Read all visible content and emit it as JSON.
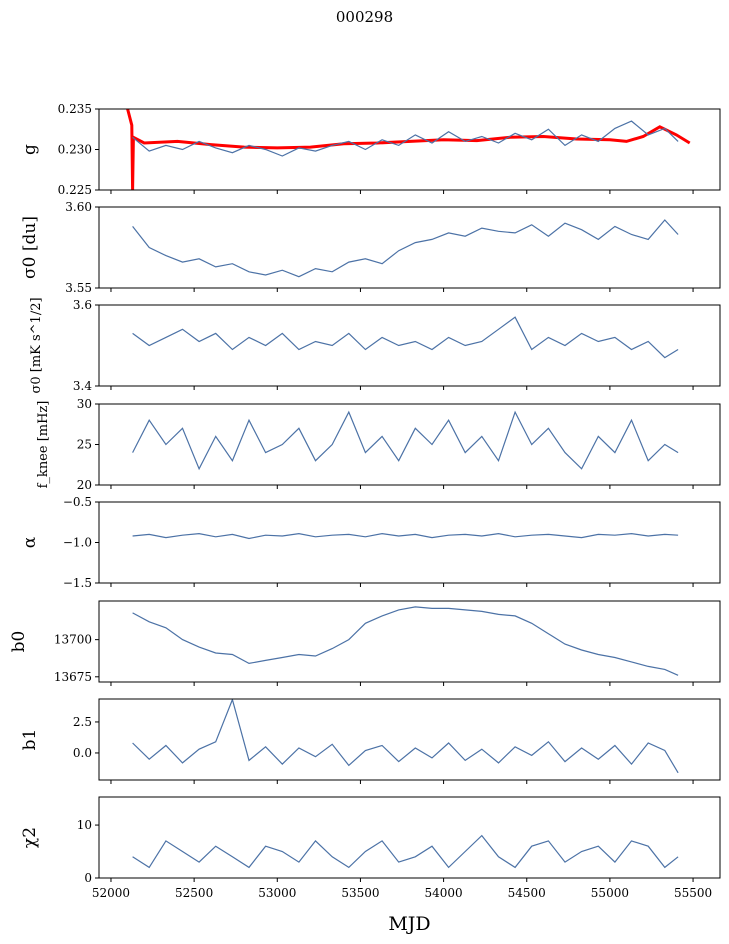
{
  "chart_data": {
    "type": "line",
    "title": "000298",
    "xlabel": "MJD",
    "xlim": [
      51928,
      55662
    ],
    "xticks": [
      52000,
      52500,
      53000,
      53500,
      54000,
      54500,
      55000,
      55500
    ],
    "xtick_labels": [
      "52000",
      "52500",
      "53000",
      "53500",
      "54000",
      "54500",
      "55000",
      "55500"
    ],
    "x": [
      52130,
      52230,
      52330,
      52430,
      52530,
      52630,
      52730,
      52830,
      52930,
      53030,
      53130,
      53230,
      53330,
      53430,
      53530,
      53630,
      53730,
      53830,
      53930,
      54030,
      54130,
      54230,
      54330,
      54430,
      54530,
      54630,
      54730,
      54830,
      54930,
      55030,
      55130,
      55230,
      55330,
      55410
    ],
    "panels": [
      {
        "ylabel": "g",
        "ylim": [
          0.225,
          0.235
        ],
        "yticks": [
          0.225,
          0.23,
          0.235
        ],
        "ytick_labels": [
          "0.225",
          "0.230",
          "0.235"
        ],
        "series": [
          {
            "name": "g-fit",
            "color": "#ff0000",
            "x": [
              52100,
              52125,
              52130,
              52135,
              52200,
              52400,
              52600,
              52800,
              53000,
              53200,
              53400,
              53600,
              53800,
              54000,
              54200,
              54400,
              54600,
              54800,
              55000,
              55100,
              55200,
              55300,
              55400,
              55480
            ],
            "values": [
              0.235,
              0.233,
              0.225,
              0.2315,
              0.2308,
              0.231,
              0.2306,
              0.2303,
              0.2302,
              0.2303,
              0.2307,
              0.2308,
              0.231,
              0.2312,
              0.2311,
              0.2315,
              0.2316,
              0.2313,
              0.2312,
              0.231,
              0.2316,
              0.2328,
              0.2318,
              0.2308
            ]
          },
          {
            "name": "g",
            "color": "#4c72a6",
            "values": [
              0.2315,
              0.2298,
              0.2305,
              0.23,
              0.231,
              0.2302,
              0.2296,
              0.2305,
              0.23,
              0.2292,
              0.2302,
              0.2298,
              0.2305,
              0.231,
              0.23,
              0.2312,
              0.2305,
              0.2318,
              0.2308,
              0.2322,
              0.231,
              0.2316,
              0.2308,
              0.232,
              0.2312,
              0.2325,
              0.2305,
              0.2318,
              0.231,
              0.2326,
              0.2335,
              0.2318,
              0.2326,
              0.231
            ]
          }
        ]
      },
      {
        "ylabel": "σ0 [du]",
        "ylim": [
          3.55,
          3.6
        ],
        "yticks": [
          3.55,
          3.6
        ],
        "ytick_labels": [
          "3.55",
          "3.60"
        ],
        "series": [
          {
            "name": "sigma0-du",
            "color": "#4c72a6",
            "values": [
              3.588,
              3.575,
              3.57,
              3.566,
              3.568,
              3.563,
              3.565,
              3.56,
              3.558,
              3.561,
              3.557,
              3.562,
              3.56,
              3.566,
              3.568,
              3.565,
              3.573,
              3.578,
              3.58,
              3.584,
              3.582,
              3.587,
              3.585,
              3.584,
              3.589,
              3.582,
              3.59,
              3.586,
              3.58,
              3.588,
              3.583,
              3.58,
              3.592,
              3.583
            ]
          }
        ]
      },
      {
        "ylabel": "σ0 [mK s^1/2]",
        "ylim": [
          3.4,
          3.6
        ],
        "yticks": [
          3.4,
          3.6
        ],
        "ytick_labels": [
          "3.4",
          "3.6"
        ],
        "series": [
          {
            "name": "sigma0-mK",
            "color": "#4c72a6",
            "values": [
              3.53,
              3.5,
              3.52,
              3.54,
              3.51,
              3.53,
              3.49,
              3.52,
              3.5,
              3.53,
              3.49,
              3.51,
              3.5,
              3.53,
              3.49,
              3.52,
              3.5,
              3.51,
              3.49,
              3.52,
              3.5,
              3.51,
              3.54,
              3.57,
              3.49,
              3.52,
              3.5,
              3.53,
              3.51,
              3.52,
              3.49,
              3.51,
              3.47,
              3.49
            ]
          }
        ]
      },
      {
        "ylabel": "f_knee [mHz]",
        "ylim": [
          20,
          30
        ],
        "yticks": [
          20,
          25,
          30
        ],
        "ytick_labels": [
          "20",
          "25",
          "30"
        ],
        "series": [
          {
            "name": "fknee",
            "color": "#4c72a6",
            "values": [
              24,
              28,
              25,
              27,
              22,
              26,
              23,
              28,
              24,
              25,
              27,
              23,
              25,
              29,
              24,
              26,
              23,
              27,
              25,
              28,
              24,
              26,
              23,
              29,
              25,
              27,
              24,
              22,
              26,
              24,
              28,
              23,
              25,
              24
            ]
          }
        ]
      },
      {
        "ylabel": "α",
        "ylim": [
          -1.5,
          -0.5
        ],
        "yticks": [
          -1.5,
          -1.0,
          -0.5
        ],
        "ytick_labels": [
          "−1.5",
          "−1.0",
          "−0.5"
        ],
        "series": [
          {
            "name": "alpha",
            "color": "#4c72a6",
            "values": [
              -0.92,
              -0.9,
              -0.94,
              -0.91,
              -0.89,
              -0.93,
              -0.9,
              -0.95,
              -0.91,
              -0.92,
              -0.89,
              -0.93,
              -0.91,
              -0.9,
              -0.93,
              -0.89,
              -0.92,
              -0.9,
              -0.94,
              -0.91,
              -0.9,
              -0.92,
              -0.89,
              -0.93,
              -0.91,
              -0.9,
              -0.92,
              -0.94,
              -0.9,
              -0.91,
              -0.89,
              -0.92,
              -0.9,
              -0.91
            ]
          }
        ]
      },
      {
        "ylabel": "b0",
        "ylim": [
          13671.5,
          13726
        ],
        "yticks": [
          13675,
          13700
        ],
        "ytick_labels": [
          "13675",
          "13700"
        ],
        "series": [
          {
            "name": "b0",
            "color": "#4c72a6",
            "values": [
              13718,
              13712,
              13708,
              13700,
              13695,
              13691,
              13690,
              13684,
              13686,
              13688,
              13690,
              13689,
              13694,
              13700,
              13711,
              13716,
              13720,
              13722,
              13721,
              13721,
              13720,
              13719,
              13717,
              13716,
              13711,
              13704,
              13697,
              13693,
              13690,
              13688,
              13685,
              13682,
              13680,
              13676
            ]
          }
        ]
      },
      {
        "ylabel": "b1",
        "ylim": [
          -2.18,
          4.35
        ],
        "yticks": [
          0.0,
          2.5
        ],
        "ytick_labels": [
          "0.0",
          "2.5"
        ],
        "series": [
          {
            "name": "b1",
            "color": "#4c72a6",
            "values": [
              0.8,
              -0.5,
              0.6,
              -0.8,
              0.3,
              0.9,
              4.3,
              -0.6,
              0.5,
              -0.9,
              0.4,
              -0.3,
              0.7,
              -1.0,
              0.2,
              0.6,
              -0.7,
              0.4,
              -0.4,
              0.8,
              -0.6,
              0.3,
              -0.8,
              0.5,
              -0.2,
              0.9,
              -0.7,
              0.4,
              -0.5,
              0.6,
              -0.9,
              0.8,
              0.2,
              -1.6
            ]
          }
        ]
      },
      {
        "ylabel": "χ2",
        "ylim": [
          0,
          15.3
        ],
        "yticks": [
          0,
          10
        ],
        "ytick_labels": [
          "0",
          "10"
        ],
        "series": [
          {
            "name": "chi2",
            "color": "#4c72a6",
            "values": [
              4,
              2,
              7,
              5,
              3,
              6,
              4,
              2,
              6,
              5,
              3,
              7,
              4,
              2,
              5,
              7,
              3,
              4,
              6,
              2,
              5,
              8,
              4,
              2,
              6,
              7,
              3,
              5,
              6,
              3,
              7,
              6,
              2,
              4
            ]
          }
        ]
      }
    ]
  }
}
